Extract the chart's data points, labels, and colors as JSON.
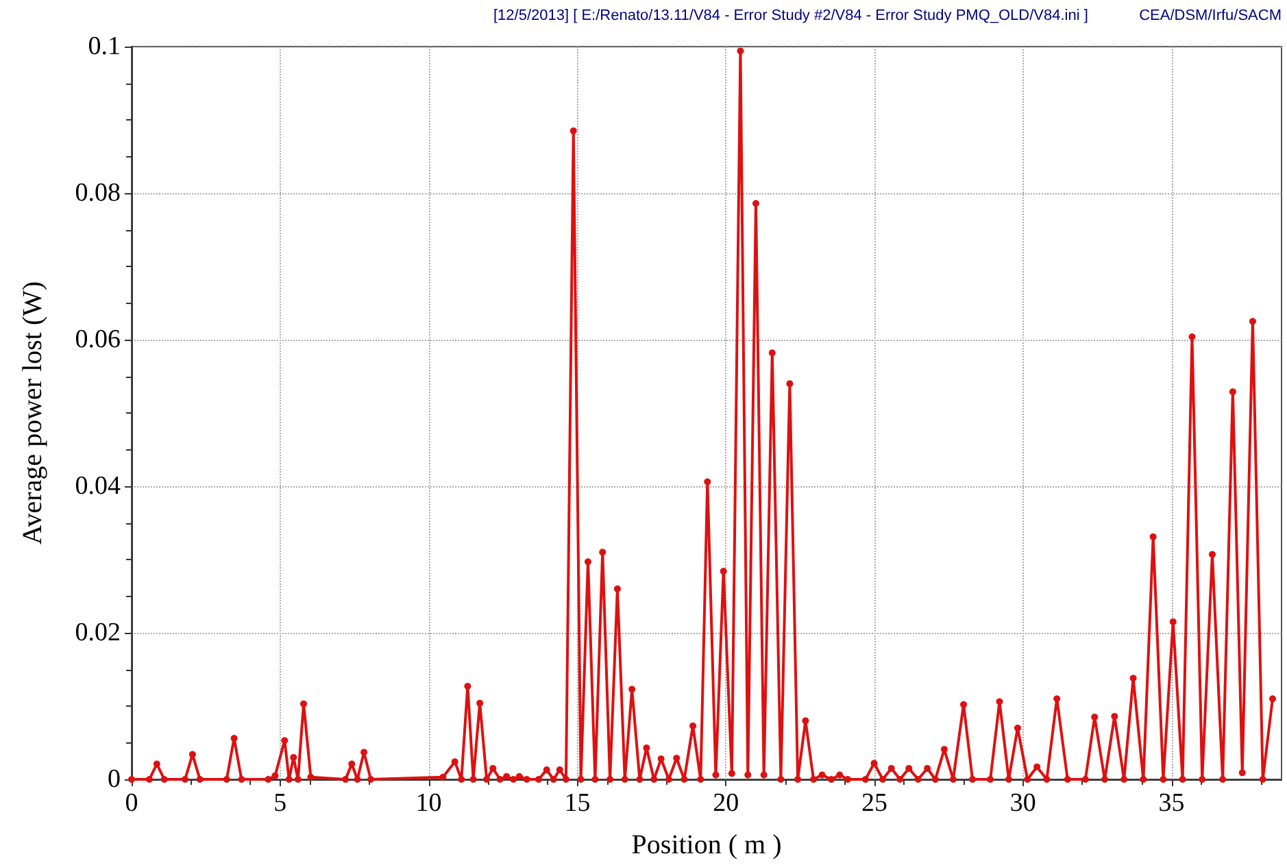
{
  "chart_data": {
    "type": "line",
    "xlabel": "Position ( m )",
    "ylabel": "Average power lost (W)",
    "annotations": [
      "[12/5/2013] [ E:/Renato/13.11/V84 - Error Study #2/V84 - Error Study PMQ_OLD/V84.ini ]",
      "CEA/DSM/Irfu/SACM"
    ],
    "x": [
      0,
      0.6,
      0.85,
      1.1,
      1.8,
      2.05,
      2.3,
      3.2,
      3.45,
      3.7,
      4.6,
      4.83,
      5.15,
      5.3,
      5.45,
      5.6,
      5.79,
      6.03,
      7.2,
      7.41,
      7.6,
      7.82,
      8.05,
      10.48,
      10.88,
      11.1,
      11.31,
      11.5,
      11.72,
      11.95,
      12.16,
      12.4,
      12.62,
      12.85,
      13.05,
      13.3,
      13.7,
      13.97,
      14.2,
      14.41,
      14.62,
      14.87,
      15.12,
      15.36,
      15.6,
      15.85,
      16.1,
      16.35,
      16.6,
      16.84,
      17.1,
      17.33,
      17.58,
      17.82,
      18.08,
      18.34,
      18.6,
      18.89,
      19.15,
      19.38,
      19.66,
      19.92,
      20.2,
      20.49,
      20.74,
      21.01,
      21.28,
      21.56,
      21.85,
      22.15,
      22.42,
      22.68,
      22.95,
      23.24,
      23.55,
      23.83,
      24.1,
      24.7,
      24.99,
      25.28,
      25.57,
      25.86,
      26.16,
      26.47,
      26.78,
      27.05,
      27.35,
      27.65,
      28.0,
      28.3,
      28.9,
      29.21,
      29.52,
      29.82,
      30.15,
      30.47,
      30.8,
      31.14,
      31.5,
      32.1,
      32.41,
      32.75,
      33.08,
      33.4,
      33.71,
      34.05,
      34.38,
      34.72,
      35.05,
      35.37,
      35.69,
      36.03,
      36.37,
      36.72,
      37.06,
      37.38,
      37.73,
      38.07,
      38.4
    ],
    "series": [
      {
        "color": "#dd1111",
        "values": [
          0,
          0,
          0.0021,
          0,
          0,
          0.0034,
          0,
          0,
          0.0056,
          0,
          0,
          0.0005,
          0.0053,
          0,
          0.003,
          0,
          0.0103,
          0.0003,
          0,
          0.0021,
          0,
          0.0037,
          0,
          0.0003,
          0.0024,
          0,
          0.0127,
          0,
          0.0104,
          0,
          0.0015,
          0,
          0.0004,
          0,
          0.0004,
          0,
          0,
          0.0013,
          0,
          0.0013,
          0,
          0.0885,
          0,
          0.0297,
          0,
          0.031,
          0,
          0.026,
          0,
          0.0123,
          0,
          0.0043,
          0,
          0.0028,
          0,
          0.0029,
          0,
          0.0073,
          0,
          0.0406,
          0.0006,
          0.0284,
          0.0008,
          0.0994,
          0.0006,
          0.0786,
          0.0006,
          0.0582,
          0,
          0.054,
          0,
          0.008,
          0,
          0.0006,
          0,
          0.0006,
          0,
          0,
          0.0022,
          0,
          0.0015,
          0,
          0.0015,
          0,
          0.0015,
          0,
          0.0041,
          0,
          0.0102,
          0,
          0,
          0.0106,
          0,
          0.007,
          0,
          0.0017,
          0,
          0.011,
          0,
          0,
          0.0085,
          0,
          0.0086,
          0,
          0.0138,
          0,
          0.0331,
          0,
          0.0215,
          0,
          0.0604,
          0,
          0.0307,
          0,
          0.0529,
          0.0009,
          0.0625,
          0,
          0.011
        ]
      }
    ],
    "xlim": [
      0,
      38.7
    ],
    "xticks": [
      0,
      5,
      10,
      15,
      20,
      25,
      30,
      35
    ],
    "ylim": [
      0,
      0.1
    ],
    "yticks": [
      0,
      0.02,
      0.04,
      0.06,
      0.08,
      0.1
    ],
    "grid": true,
    "marker": "circle",
    "line_style": "solid"
  }
}
